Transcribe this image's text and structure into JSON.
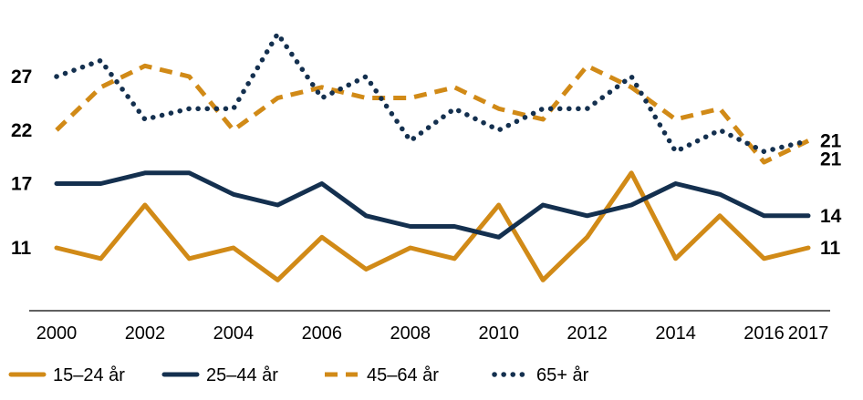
{
  "chart_data": {
    "type": "line",
    "title": "",
    "xlabel": "",
    "ylabel": "",
    "x": [
      2000,
      2001,
      2002,
      2003,
      2004,
      2005,
      2006,
      2007,
      2008,
      2009,
      2010,
      2011,
      2012,
      2013,
      2014,
      2015,
      2016,
      2017
    ],
    "x_tick_labels": [
      "2000",
      "2002",
      "2004",
      "2006",
      "2008",
      "2010",
      "2012",
      "2014",
      "2016",
      "2017"
    ],
    "y_tick_labels": [
      "11",
      "17",
      "22",
      "27"
    ],
    "ylim": [
      5.5,
      31
    ],
    "grid": false,
    "legend_position": "bottom",
    "series": [
      {
        "name": "15–24 år",
        "color": "#d18a17",
        "style": "solid",
        "values": [
          11,
          10,
          15,
          10,
          11,
          8,
          12,
          9,
          11,
          10,
          15,
          8,
          12,
          18,
          10,
          14,
          10,
          11
        ],
        "end_label": "11"
      },
      {
        "name": "25–44 år",
        "color": "#14304f",
        "style": "solid",
        "values": [
          17,
          17,
          18,
          18,
          16,
          15,
          17,
          14,
          13,
          13,
          12,
          15,
          14,
          15,
          17,
          16,
          14,
          14
        ],
        "end_label": "14"
      },
      {
        "name": "45–64 år",
        "color": "#d18a17",
        "style": "dashed",
        "values": [
          22,
          26,
          28,
          27,
          22,
          25,
          26,
          25,
          25,
          26,
          24,
          23,
          28,
          26,
          23,
          24,
          19,
          21
        ],
        "end_label": "21"
      },
      {
        "name": "65+ år",
        "color": "#14304f",
        "style": "dotted",
        "values": [
          27,
          28.5,
          23,
          24,
          24,
          31,
          25,
          27,
          21,
          24,
          22,
          24,
          24,
          27,
          20,
          22,
          20,
          21
        ],
        "end_label": "21"
      }
    ]
  }
}
